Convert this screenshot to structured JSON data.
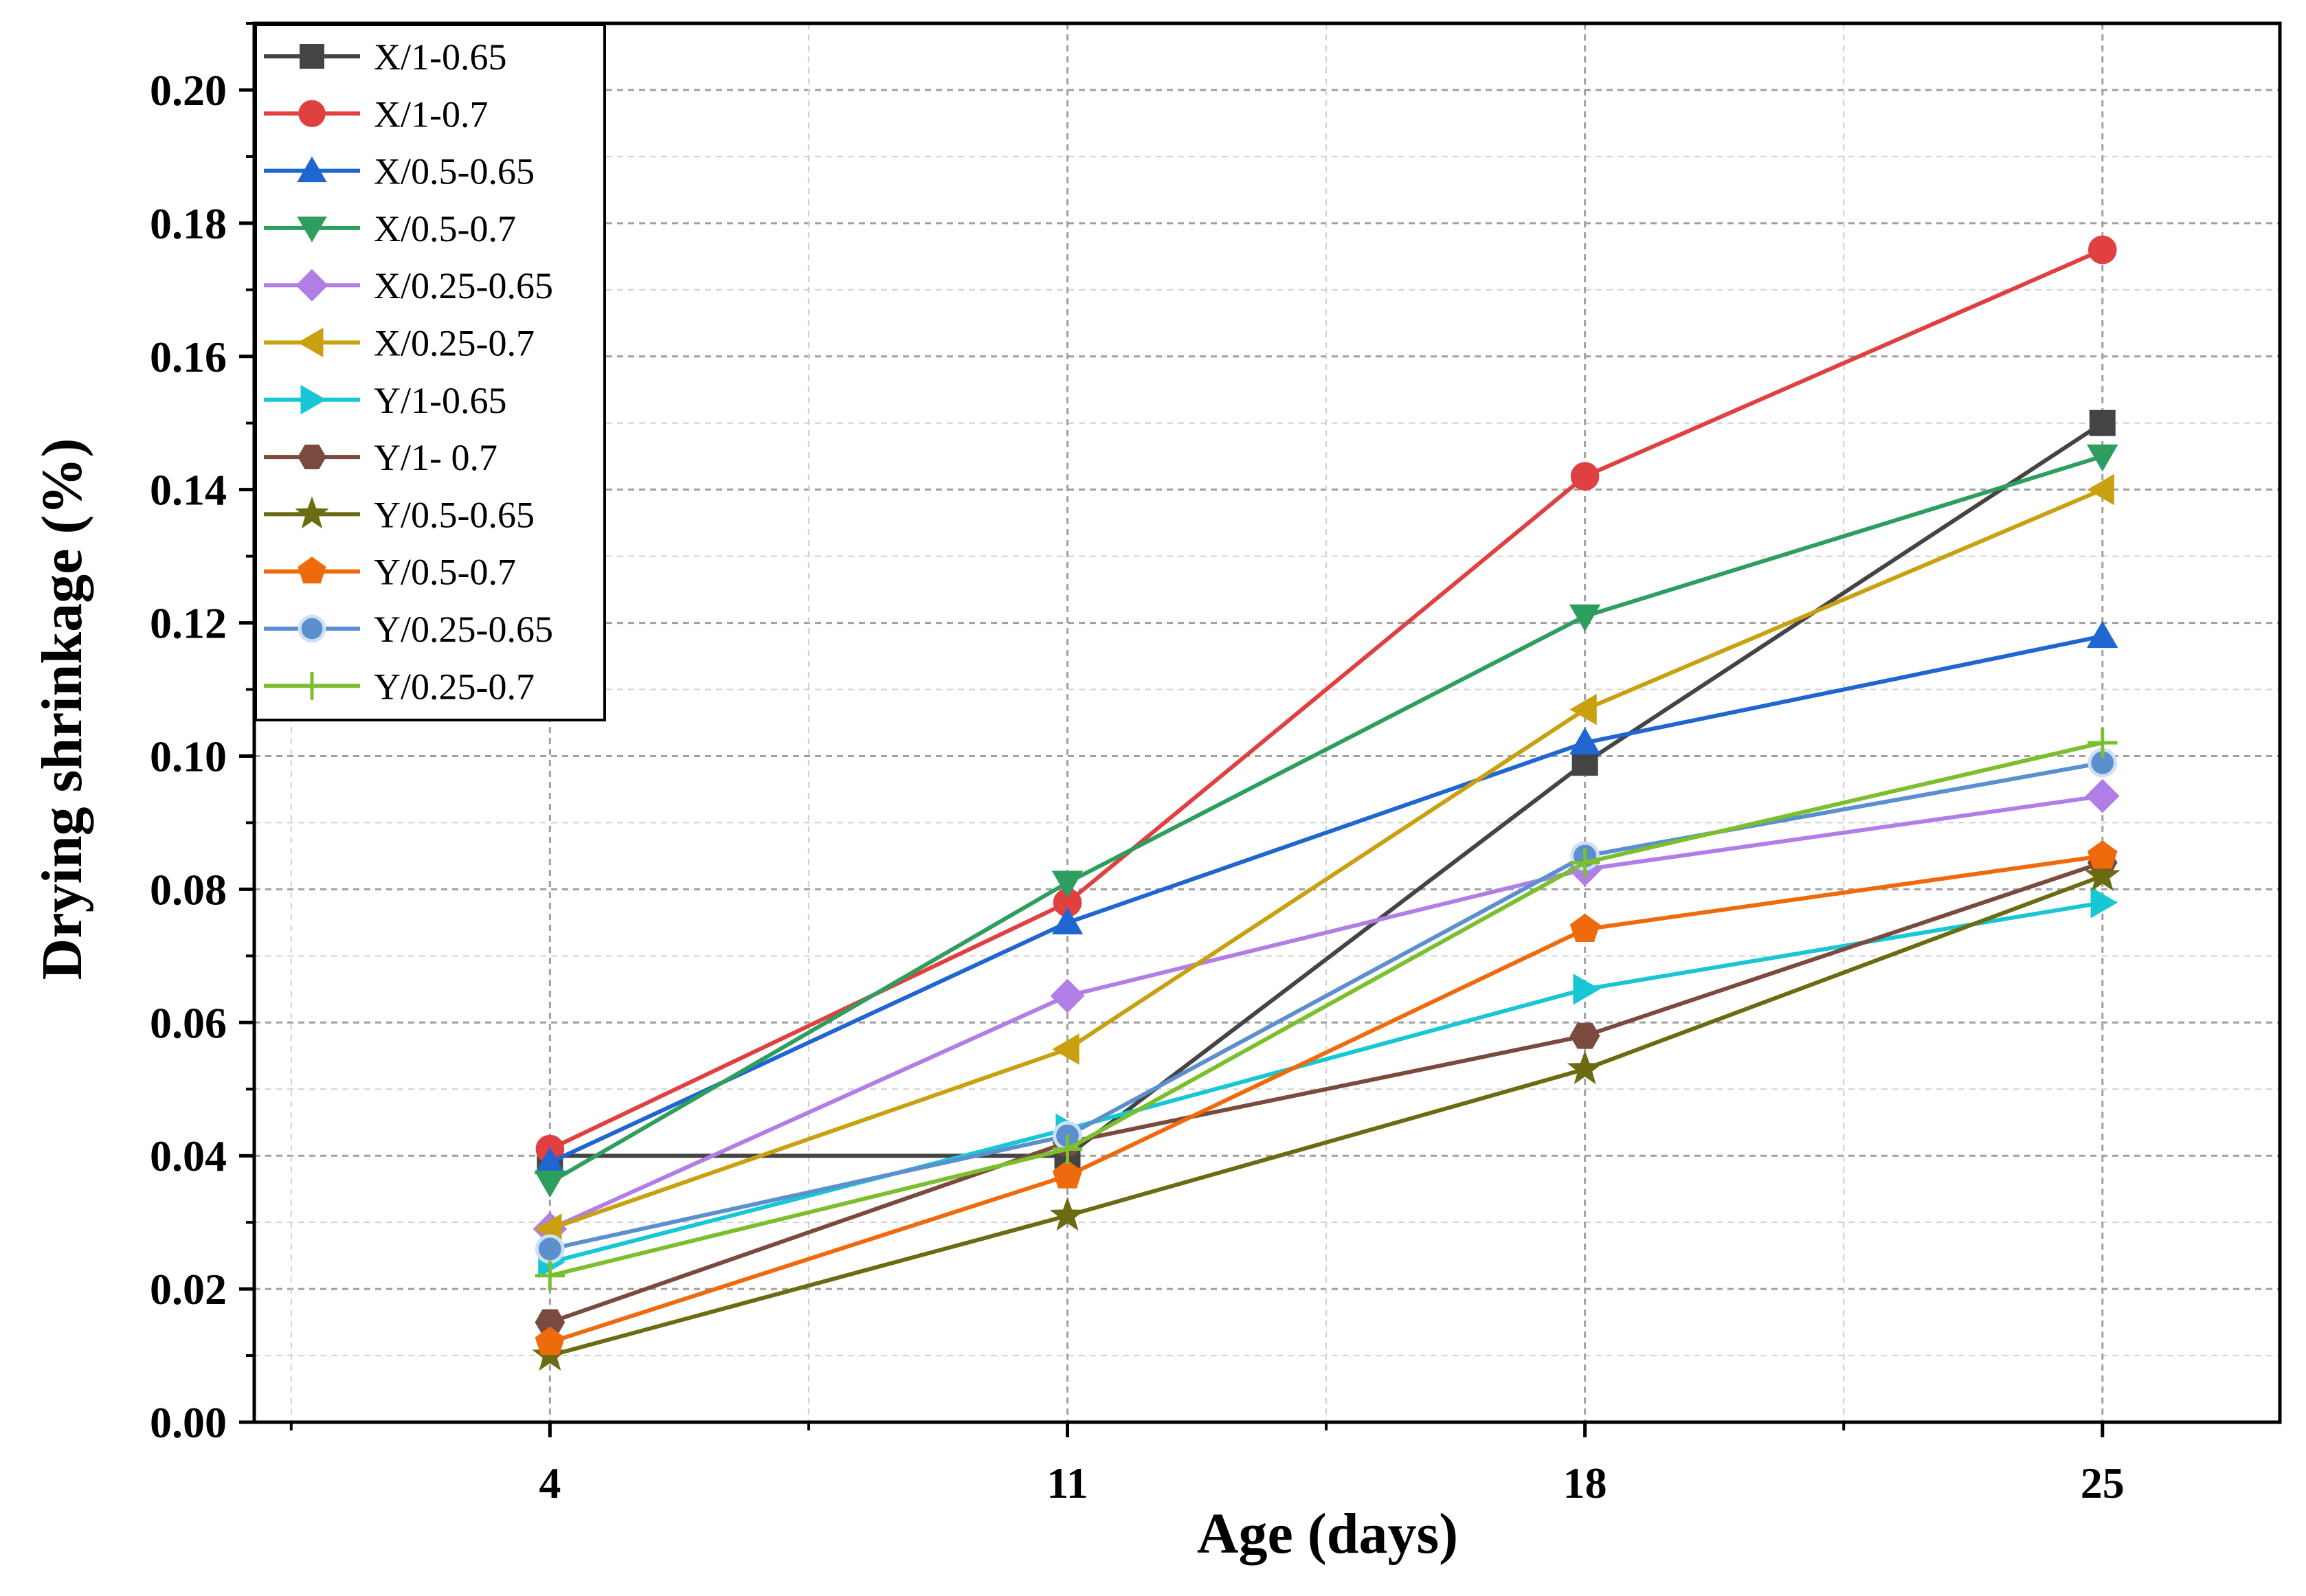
{
  "chart_data": {
    "type": "line",
    "xlabel": "Age (days)",
    "ylabel": "Drying shrinkage (%)",
    "x": [
      4,
      11,
      18,
      25
    ],
    "xlim": [
      0,
      27.4
    ],
    "ylim": [
      0,
      0.21
    ],
    "xticks": [
      "4",
      "11",
      "18",
      "25"
    ],
    "yticks": [
      "0.00",
      "0.02",
      "0.04",
      "0.06",
      "0.08",
      "0.10",
      "0.12",
      "0.14",
      "0.16",
      "0.18",
      "0.20"
    ],
    "grid": true,
    "legend_position": "top-left",
    "series": [
      {
        "name": "X/1-0.65",
        "color": "#444444",
        "marker": "square",
        "values": [
          0.04,
          0.04,
          0.099,
          0.15
        ]
      },
      {
        "name": "X/1-0.7",
        "color": "#e04040",
        "marker": "circle",
        "values": [
          0.041,
          0.078,
          0.142,
          0.176
        ]
      },
      {
        "name": "X/0.5-0.65",
        "color": "#1f66d0",
        "marker": "triangle-up",
        "values": [
          0.039,
          0.075,
          0.102,
          0.118
        ]
      },
      {
        "name": "X/0.5-0.7",
        "color": "#2e9e5e",
        "marker": "triangle-down",
        "values": [
          0.036,
          0.081,
          0.121,
          0.145
        ]
      },
      {
        "name": "X/0.25-0.65",
        "color": "#b07ee6",
        "marker": "diamond",
        "values": [
          0.029,
          0.064,
          0.083,
          0.094
        ]
      },
      {
        "name": "X/0.25-0.7",
        "color": "#c9a010",
        "marker": "triangle-left",
        "values": [
          0.029,
          0.056,
          0.107,
          0.14
        ]
      },
      {
        "name": "Y/1-0.65",
        "color": "#19c6d4",
        "marker": "triangle-right",
        "values": [
          0.024,
          0.044,
          0.065,
          0.078
        ]
      },
      {
        "name": "Y/1- 0.7",
        "color": "#7a4a3e",
        "marker": "hexagon",
        "values": [
          0.015,
          0.042,
          0.058,
          0.084
        ]
      },
      {
        "name": "Y/0.5-0.65",
        "color": "#6b6b12",
        "marker": "star",
        "values": [
          0.01,
          0.031,
          0.053,
          0.082
        ]
      },
      {
        "name": "Y/0.5-0.7",
        "color": "#ef6a0c",
        "marker": "pentagon",
        "values": [
          0.012,
          0.037,
          0.074,
          0.085
        ]
      },
      {
        "name": "Y/0.25-0.65",
        "color": "#5b8fce",
        "marker": "circle-half",
        "values": [
          0.026,
          0.043,
          0.085,
          0.099
        ]
      },
      {
        "name": "Y/0.25-0.7",
        "color": "#7cbf2e",
        "marker": "plus",
        "values": [
          0.022,
          0.041,
          0.084,
          0.102
        ]
      }
    ]
  }
}
